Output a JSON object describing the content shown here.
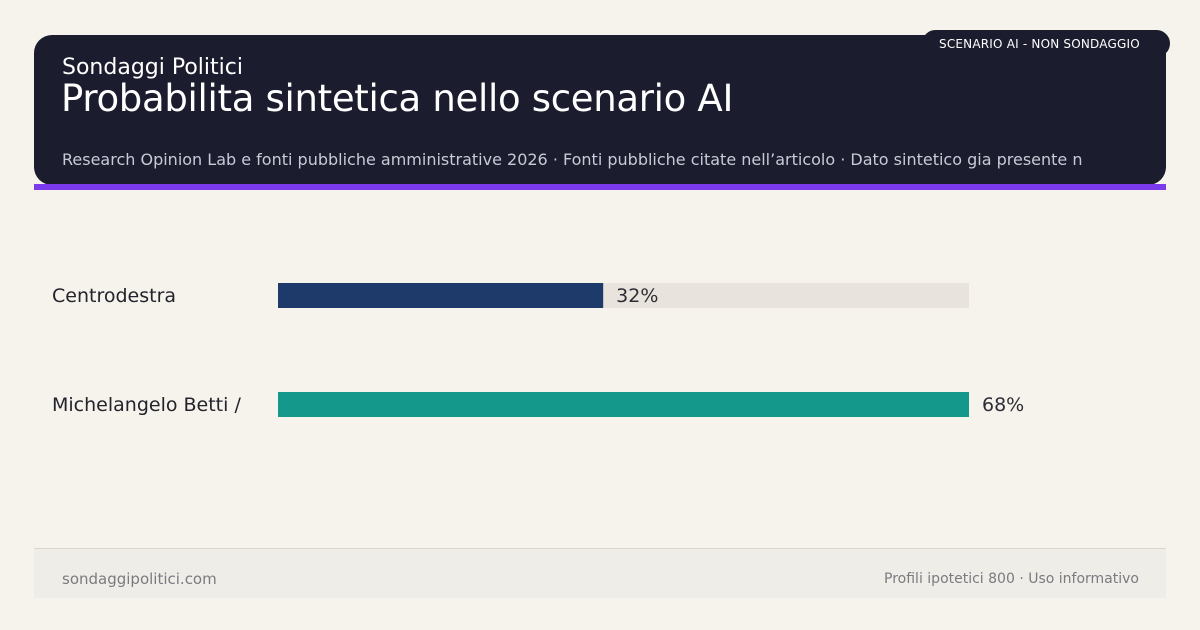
{
  "header": {
    "brand": "Sondaggi Politici",
    "title": "Probabilita sintetica nello scenario AI",
    "subtitle": "Research Opinion Lab e fonti pubbliche amministrative 2026 · Fonti pubbliche citate nell’articolo · Dato sintetico gia presente n",
    "badge": "SCENARIO AI - NON SONDAGGIO"
  },
  "chart_data": {
    "type": "bar",
    "orientation": "horizontal",
    "categories": [
      "Centrodestra",
      "Michelangelo Betti /"
    ],
    "values": [
      32,
      68
    ],
    "value_labels": [
      "32%",
      "68%"
    ],
    "colors": [
      "#1e3a6a",
      "#14988c"
    ],
    "track_color": "#e8e3dc",
    "xlim": [
      0,
      68
    ],
    "unit": "%",
    "grid": false
  },
  "footer": {
    "left": "sondaggipolitici.com",
    "right": "Profili ipotetici 800 · Uso informativo"
  }
}
